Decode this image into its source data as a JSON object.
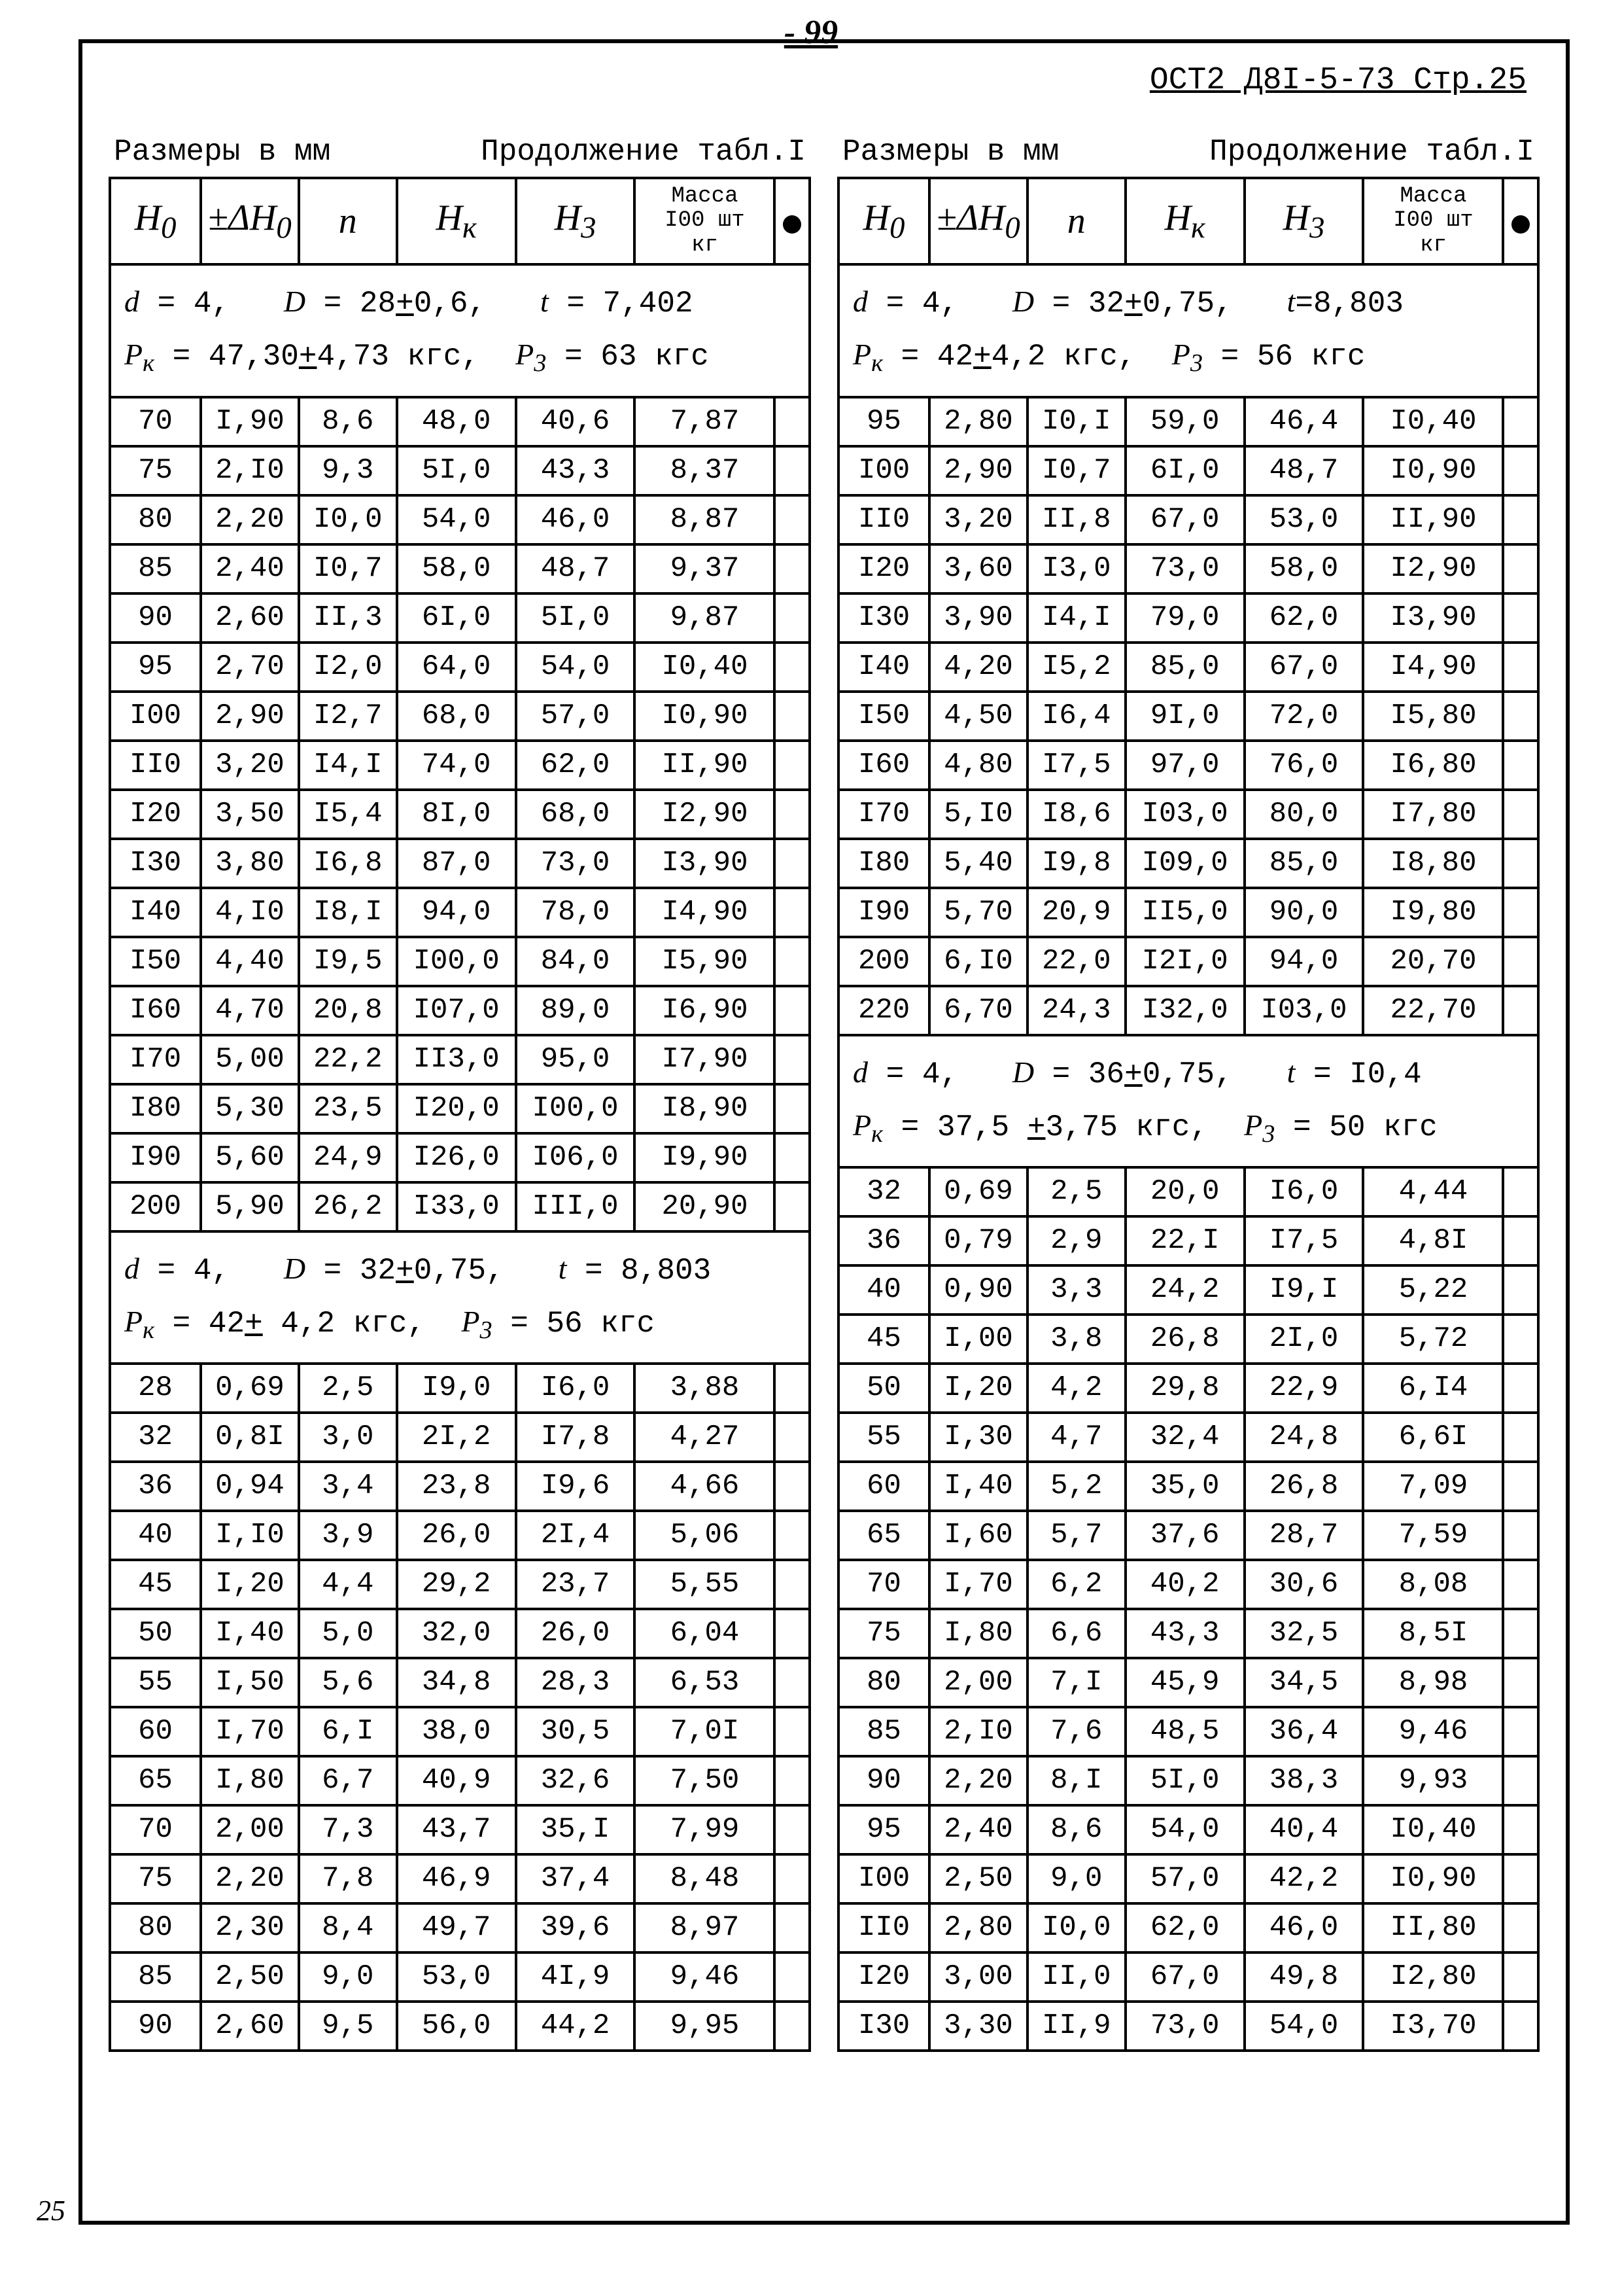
{
  "page_number_top": "- 99",
  "page_number_bottom": "25",
  "standard_ref": "ОСТ2 Д8I-5-73 Стр.25",
  "units_label": "Размеры в мм",
  "continuation_label": "Продолжение табл.I",
  "column_headers": [
    {
      "html": "H<sub>0</sub>"
    },
    {
      "html": "±ΔH<sub>0</sub>"
    },
    {
      "html": "n"
    },
    {
      "html": "H<sub>к</sub>"
    },
    {
      "html": "H<sub>3</sub>"
    },
    {
      "html": "Масса<br>I00 шт<br>кг",
      "class": "mass"
    },
    {
      "html": "<span class='black-dot'></span>",
      "class": "dot"
    }
  ],
  "col_widths": [
    "13%",
    "14%",
    "14%",
    "17%",
    "17%",
    "20%",
    "5%"
  ],
  "left_column": {
    "sections": [
      {
        "params_html": "<span class='ital'>d</span> = 4,&nbsp;&nbsp;&nbsp;<span class='ital'>D</span> = 28<u>+</u>0,6,&nbsp;&nbsp;&nbsp;<span class='ital'>t</span> = 7,402<br><span class='ital'>P<sub>к</sub></span> = 47,30<u>+</u>4,73 кгс,&nbsp;&nbsp;<span class='ital'>P<sub>3</sub></span> = 63 кгс",
        "rows": [
          [
            "70",
            "I,90",
            "8,6",
            "48,0",
            "40,6",
            "7,87"
          ],
          [
            "75",
            "2,I0",
            "9,3",
            "5I,0",
            "43,3",
            "8,37"
          ],
          [
            "80",
            "2,20",
            "I0,0",
            "54,0",
            "46,0",
            "8,87"
          ],
          [
            "85",
            "2,40",
            "I0,7",
            "58,0",
            "48,7",
            "9,37"
          ],
          [
            "90",
            "2,60",
            "II,3",
            "6I,0",
            "5I,0",
            "9,87"
          ],
          [
            "95",
            "2,70",
            "I2,0",
            "64,0",
            "54,0",
            "I0,40"
          ],
          [
            "I00",
            "2,90",
            "I2,7",
            "68,0",
            "57,0",
            "I0,90"
          ],
          [
            "II0",
            "3,20",
            "I4,I",
            "74,0",
            "62,0",
            "II,90"
          ],
          [
            "I20",
            "3,50",
            "I5,4",
            "8I,0",
            "68,0",
            "I2,90"
          ],
          [
            "I30",
            "3,80",
            "I6,8",
            "87,0",
            "73,0",
            "I3,90"
          ],
          [
            "I40",
            "4,I0",
            "I8,I",
            "94,0",
            "78,0",
            "I4,90"
          ],
          [
            "I50",
            "4,40",
            "I9,5",
            "I00,0",
            "84,0",
            "I5,90"
          ],
          [
            "I60",
            "4,70",
            "20,8",
            "I07,0",
            "89,0",
            "I6,90"
          ],
          [
            "I70",
            "5,00",
            "22,2",
            "II3,0",
            "95,0",
            "I7,90"
          ],
          [
            "I80",
            "5,30",
            "23,5",
            "I20,0",
            "I00,0",
            "I8,90"
          ],
          [
            "I90",
            "5,60",
            "24,9",
            "I26,0",
            "I06,0",
            "I9,90"
          ],
          [
            "200",
            "5,90",
            "26,2",
            "I33,0",
            "III,0",
            "20,90"
          ]
        ]
      },
      {
        "params_html": "<span class='ital'>d</span> = 4,&nbsp;&nbsp;&nbsp;<span class='ital'>D</span> = 32<u>+</u>0,75,&nbsp;&nbsp;&nbsp;<span class='ital'>t</span> = 8,803<br><span class='ital'>P<sub>к</sub></span> = 42<u>+</u> 4,2 кгс,&nbsp;&nbsp;<span class='ital'>P<sub>3</sub></span> = 56 кгс",
        "rows": [
          [
            "28",
            "0,69",
            "2,5",
            "I9,0",
            "I6,0",
            "3,88"
          ],
          [
            "32",
            "0,8I",
            "3,0",
            "2I,2",
            "I7,8",
            "4,27"
          ],
          [
            "36",
            "0,94",
            "3,4",
            "23,8",
            "I9,6",
            "4,66"
          ],
          [
            "40",
            "I,I0",
            "3,9",
            "26,0",
            "2I,4",
            "5,06"
          ],
          [
            "45",
            "I,20",
            "4,4",
            "29,2",
            "23,7",
            "5,55"
          ],
          [
            "50",
            "I,40",
            "5,0",
            "32,0",
            "26,0",
            "6,04"
          ],
          [
            "55",
            "I,50",
            "5,6",
            "34,8",
            "28,3",
            "6,53"
          ],
          [
            "60",
            "I,70",
            "6,I",
            "38,0",
            "30,5",
            "7,0I"
          ],
          [
            "65",
            "I,80",
            "6,7",
            "40,9",
            "32,6",
            "7,50"
          ],
          [
            "70",
            "2,00",
            "7,3",
            "43,7",
            "35,I",
            "7,99"
          ],
          [
            "75",
            "2,20",
            "7,8",
            "46,9",
            "37,4",
            "8,48"
          ],
          [
            "80",
            "2,30",
            "8,4",
            "49,7",
            "39,6",
            "8,97"
          ],
          [
            "85",
            "2,50",
            "9,0",
            "53,0",
            "4I,9",
            "9,46"
          ],
          [
            "90",
            "2,60",
            "9,5",
            "56,0",
            "44,2",
            "9,95"
          ]
        ]
      }
    ]
  },
  "right_column": {
    "sections": [
      {
        "params_html": "<span class='ital'>d</span> = 4,&nbsp;&nbsp;&nbsp;<span class='ital'>D</span> = 32<u>+</u>0,75,&nbsp;&nbsp;&nbsp;<span class='ital'>t</span>=8,803<br><span class='ital'>P<sub>к</sub></span> = 42<u>+</u>4,2 кгс,&nbsp;&nbsp;<span class='ital'>P<sub>3</sub></span> = 56 кгс",
        "rows": [
          [
            "95",
            "2,80",
            "I0,I",
            "59,0",
            "46,4",
            "I0,40"
          ],
          [
            "I00",
            "2,90",
            "I0,7",
            "6I,0",
            "48,7",
            "I0,90"
          ],
          [
            "II0",
            "3,20",
            "II,8",
            "67,0",
            "53,0",
            "II,90"
          ],
          [
            "I20",
            "3,60",
            "I3,0",
            "73,0",
            "58,0",
            "I2,90"
          ],
          [
            "I30",
            "3,90",
            "I4,I",
            "79,0",
            "62,0",
            "I3,90"
          ],
          [
            "I40",
            "4,20",
            "I5,2",
            "85,0",
            "67,0",
            "I4,90"
          ],
          [
            "I50",
            "4,50",
            "I6,4",
            "9I,0",
            "72,0",
            "I5,80"
          ],
          [
            "I60",
            "4,80",
            "I7,5",
            "97,0",
            "76,0",
            "I6,80"
          ],
          [
            "I70",
            "5,I0",
            "I8,6",
            "I03,0",
            "80,0",
            "I7,80"
          ],
          [
            "I80",
            "5,40",
            "I9,8",
            "I09,0",
            "85,0",
            "I8,80"
          ],
          [
            "I90",
            "5,70",
            "20,9",
            "II5,0",
            "90,0",
            "I9,80"
          ],
          [
            "200",
            "6,I0",
            "22,0",
            "I2I,0",
            "94,0",
            "20,70"
          ],
          [
            "220",
            "6,70",
            "24,3",
            "I32,0",
            "I03,0",
            "22,70"
          ]
        ]
      },
      {
        "params_html": "<span class='ital'>d</span> = 4,&nbsp;&nbsp;&nbsp;<span class='ital'>D</span> = 36<u>+</u>0,75,&nbsp;&nbsp;&nbsp;<span class='ital'>t</span> = I0,4<br><span class='ital'>P<sub>к</sub></span> = 37,5 <u>+</u>3,75 кгс,&nbsp;&nbsp;<span class='ital'>P<sub>3</sub></span> = 50 кгс",
        "rows": [
          [
            "32",
            "0,69",
            "2,5",
            "20,0",
            "I6,0",
            "4,44"
          ],
          [
            "36",
            "0,79",
            "2,9",
            "22,I",
            "I7,5",
            "4,8I"
          ],
          [
            "40",
            "0,90",
            "3,3",
            "24,2",
            "I9,I",
            "5,22"
          ],
          [
            "45",
            "I,00",
            "3,8",
            "26,8",
            "2I,0",
            "5,72"
          ],
          [
            "50",
            "I,20",
            "4,2",
            "29,8",
            "22,9",
            "6,I4"
          ],
          [
            "55",
            "I,30",
            "4,7",
            "32,4",
            "24,8",
            "6,6I"
          ],
          [
            "60",
            "I,40",
            "5,2",
            "35,0",
            "26,8",
            "7,09"
          ],
          [
            "65",
            "I,60",
            "5,7",
            "37,6",
            "28,7",
            "7,59"
          ],
          [
            "70",
            "I,70",
            "6,2",
            "40,2",
            "30,6",
            "8,08"
          ],
          [
            "75",
            "I,80",
            "6,6",
            "43,3",
            "32,5",
            "8,5I"
          ],
          [
            "80",
            "2,00",
            "7,I",
            "45,9",
            "34,5",
            "8,98"
          ],
          [
            "85",
            "2,I0",
            "7,6",
            "48,5",
            "36,4",
            "9,46"
          ],
          [
            "90",
            "2,20",
            "8,I",
            "5I,0",
            "38,3",
            "9,93"
          ],
          [
            "95",
            "2,40",
            "8,6",
            "54,0",
            "40,4",
            "I0,40"
          ],
          [
            "I00",
            "2,50",
            "9,0",
            "57,0",
            "42,2",
            "I0,90"
          ],
          [
            "II0",
            "2,80",
            "I0,0",
            "62,0",
            "46,0",
            "II,80"
          ],
          [
            "I20",
            "3,00",
            "II,0",
            "67,0",
            "49,8",
            "I2,80"
          ],
          [
            "I30",
            "3,30",
            "II,9",
            "73,0",
            "54,0",
            "I3,70"
          ]
        ]
      }
    ]
  }
}
